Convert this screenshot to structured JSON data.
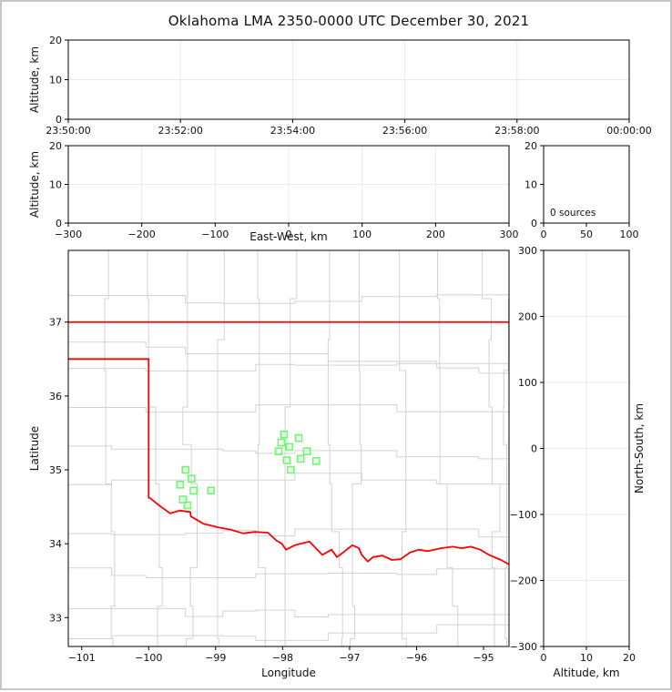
{
  "title": "Oklahoma LMA 2350-0000 UTC December 30, 2021",
  "colors": {
    "axis": "#000000",
    "grid": "#e9e9e9",
    "county": "#d2d2d2",
    "state_border": "#ff0000",
    "station": "#66ff66",
    "frame": "#c6c6c6"
  },
  "chart_data": [
    {
      "id": "time-height",
      "type": "scatter",
      "xlabel": "",
      "ylabel": "Altitude, km",
      "ylabel_side": "left",
      "xlim": [
        0,
        600
      ],
      "ylim": [
        0,
        20
      ],
      "grid": true,
      "xticks": [
        {
          "v": 0,
          "label": "23:50:00"
        },
        {
          "v": 120,
          "label": "23:52:00"
        },
        {
          "v": 240,
          "label": "23:54:00"
        },
        {
          "v": 360,
          "label": "23:56:00"
        },
        {
          "v": 480,
          "label": "23:58:00"
        },
        {
          "v": 600,
          "label": "00:00:00"
        }
      ],
      "yticks": [
        {
          "v": 0,
          "label": "0"
        },
        {
          "v": 10,
          "label": "10"
        },
        {
          "v": 20,
          "label": "20"
        }
      ],
      "points": []
    },
    {
      "id": "ew-height",
      "type": "scatter",
      "xlabel": "East-West, km",
      "ylabel": "Altitude, km",
      "ylabel_side": "left",
      "xlim": [
        -300,
        300
      ],
      "ylim": [
        0,
        20
      ],
      "grid": true,
      "xticks": [
        {
          "v": -300,
          "label": "−300"
        },
        {
          "v": -200,
          "label": "−200"
        },
        {
          "v": -100,
          "label": "−100"
        },
        {
          "v": 0,
          "label": "0"
        },
        {
          "v": 100,
          "label": "100"
        },
        {
          "v": 200,
          "label": "200"
        },
        {
          "v": 300,
          "label": "300"
        }
      ],
      "yticks": [
        {
          "v": 0,
          "label": "0"
        },
        {
          "v": 10,
          "label": "10"
        },
        {
          "v": 20,
          "label": "20"
        }
      ],
      "points": []
    },
    {
      "id": "altitude-histogram",
      "type": "histogram",
      "xlabel": "",
      "ylabel": "",
      "xlim": [
        0,
        100
      ],
      "ylim": [
        0,
        20
      ],
      "grid": false,
      "annotation": "0 sources",
      "xticks": [
        {
          "v": 0,
          "label": "0"
        },
        {
          "v": 50,
          "label": "50"
        },
        {
          "v": 100,
          "label": "100"
        }
      ],
      "yticks": [
        {
          "v": 0,
          "label": "0"
        },
        {
          "v": 10,
          "label": "10"
        },
        {
          "v": 20,
          "label": "20"
        }
      ],
      "points": []
    },
    {
      "id": "plan-view-map",
      "type": "map",
      "xlabel": "Longitude",
      "ylabel": "Latitude",
      "ylabel_side": "left",
      "xlim": [
        -101.2,
        -94.62
      ],
      "ylim": [
        32.61,
        37.97
      ],
      "grid": false,
      "xticks": [
        {
          "v": -101,
          "label": "−101"
        },
        {
          "v": -100,
          "label": "−100"
        },
        {
          "v": -99,
          "label": "−99"
        },
        {
          "v": -98,
          "label": "−98"
        },
        {
          "v": -97,
          "label": "−97"
        },
        {
          "v": -96,
          "label": "−96"
        },
        {
          "v": -95,
          "label": "−95"
        }
      ],
      "yticks": [
        {
          "v": 33,
          "label": "33"
        },
        {
          "v": 34,
          "label": "34"
        },
        {
          "v": 35,
          "label": "35"
        },
        {
          "v": 36,
          "label": "36"
        },
        {
          "v": 37,
          "label": "37"
        }
      ],
      "stations": [
        [
          -97.98,
          35.48
        ],
        [
          -97.76,
          35.43
        ],
        [
          -98.02,
          35.37
        ],
        [
          -97.9,
          35.31
        ],
        [
          -98.06,
          35.25
        ],
        [
          -97.64,
          35.25
        ],
        [
          -97.94,
          35.13
        ],
        [
          -97.73,
          35.15
        ],
        [
          -97.5,
          35.12
        ],
        [
          -97.88,
          35.0
        ],
        [
          -99.45,
          35.0
        ],
        [
          -99.36,
          34.88
        ],
        [
          -99.53,
          34.8
        ],
        [
          -99.33,
          34.72
        ],
        [
          -99.07,
          34.72
        ],
        [
          -99.49,
          34.6
        ],
        [
          -99.42,
          34.52
        ]
      ],
      "state_border": {
        "north_lat": 37.0,
        "panhandle_south_lat": 36.5,
        "panhandle_east_lon": -100.0,
        "west_border_lat_range": [
          36.5,
          34.62
        ],
        "red_river": [
          [
            -99.98,
            34.62
          ],
          [
            -99.86,
            34.53
          ],
          [
            -99.68,
            34.41
          ],
          [
            -99.54,
            34.45
          ],
          [
            -99.38,
            34.43
          ],
          [
            -99.37,
            34.37
          ],
          [
            -99.18,
            34.27
          ],
          [
            -98.96,
            34.22
          ],
          [
            -98.77,
            34.19
          ],
          [
            -98.59,
            34.14
          ],
          [
            -98.42,
            34.16
          ],
          [
            -98.22,
            34.15
          ],
          [
            -98.09,
            34.04
          ],
          [
            -98.01,
            34.0
          ],
          [
            -97.95,
            33.92
          ],
          [
            -97.82,
            33.98
          ],
          [
            -97.6,
            34.03
          ],
          [
            -97.41,
            33.85
          ],
          [
            -97.27,
            33.92
          ],
          [
            -97.19,
            33.82
          ],
          [
            -97.1,
            33.88
          ],
          [
            -96.96,
            33.98
          ],
          [
            -96.86,
            33.94
          ],
          [
            -96.82,
            33.85
          ],
          [
            -96.73,
            33.76
          ],
          [
            -96.65,
            33.82
          ],
          [
            -96.51,
            33.84
          ],
          [
            -96.37,
            33.78
          ],
          [
            -96.24,
            33.79
          ],
          [
            -96.1,
            33.88
          ],
          [
            -95.97,
            33.92
          ],
          [
            -95.83,
            33.9
          ],
          [
            -95.64,
            33.94
          ],
          [
            -95.46,
            33.96
          ],
          [
            -95.33,
            33.94
          ],
          [
            -95.19,
            33.96
          ],
          [
            -95.05,
            33.92
          ],
          [
            -94.92,
            33.85
          ],
          [
            -94.74,
            33.78
          ],
          [
            -94.62,
            33.72
          ]
        ]
      }
    },
    {
      "id": "ns-height",
      "type": "scatter",
      "xlabel": "Altitude, km",
      "ylabel": "North-South, km",
      "ylabel_side": "right",
      "xlim": [
        0,
        20
      ],
      "ylim": [
        -300,
        300
      ],
      "grid": true,
      "xticks": [
        {
          "v": 0,
          "label": "0"
        },
        {
          "v": 10,
          "label": "10"
        },
        {
          "v": 20,
          "label": "20"
        }
      ],
      "yticks": [
        {
          "v": 300,
          "label": "300"
        },
        {
          "v": 200,
          "label": "200"
        },
        {
          "v": 100,
          "label": "100"
        },
        {
          "v": 0,
          "label": "0"
        },
        {
          "v": -100,
          "label": "−100"
        },
        {
          "v": -200,
          "label": "−200"
        },
        {
          "v": -300,
          "label": "−300"
        }
      ],
      "points": []
    }
  ]
}
